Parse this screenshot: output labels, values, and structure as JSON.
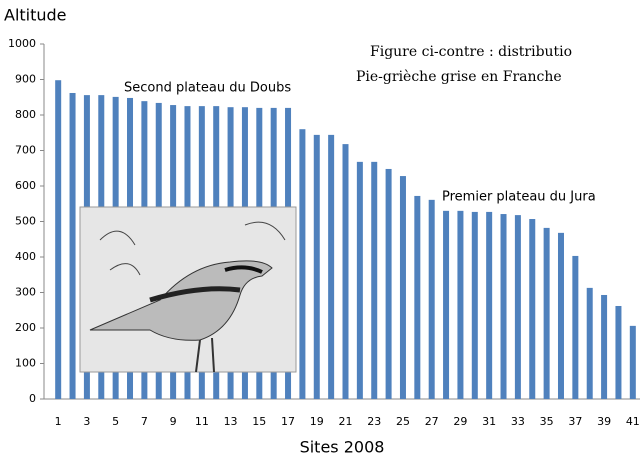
{
  "chart_data": {
    "type": "bar",
    "y_label": "Altitude",
    "x_label": "Sites 2008",
    "annotations": [
      "Second plateau du Doubs",
      "Premier plateau du Jura",
      "Figure ci-contre : distributio",
      "Pie-grièche grise en Franche"
    ],
    "categories": [
      "1",
      null,
      "3",
      null,
      "5",
      null,
      "7",
      null,
      "9",
      null,
      "11",
      null,
      "13",
      null,
      "15",
      null,
      "17",
      null,
      "19",
      null,
      "21",
      null,
      "23",
      null,
      "25",
      null,
      "27",
      null,
      "29",
      null,
      "31",
      null,
      "33",
      null,
      "35",
      null,
      "37",
      null,
      "39",
      null,
      "41"
    ],
    "values": [
      898,
      862,
      856,
      856,
      851,
      848,
      839,
      834,
      828,
      825,
      825,
      825,
      822,
      822,
      820,
      820,
      820,
      760,
      744,
      744,
      718,
      668,
      668,
      648,
      628,
      572,
      561,
      530,
      530,
      527,
      527,
      521,
      518,
      507,
      482,
      468,
      403,
      313,
      293,
      262,
      206
    ],
    "color": "#4f81bd",
    "ylim": [
      0,
      1000
    ],
    "yticks": [
      0,
      100,
      200,
      300,
      400,
      500,
      600,
      700,
      800,
      900,
      1000
    ],
    "grid": false
  }
}
